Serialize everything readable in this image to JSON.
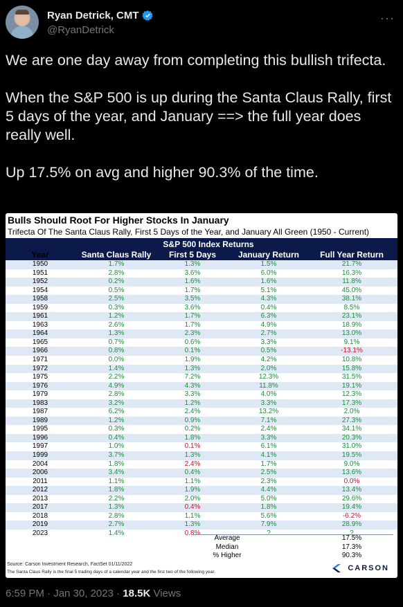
{
  "author": {
    "name": "Ryan Detrick, CMT",
    "handle": "@RyanDetrick",
    "verified_color": "#1d9bf0"
  },
  "tweet": {
    "paragraphs": [
      "We are one day away from completing this bullish trifecta.",
      "When the S&P 500 is up during the Santa Claus Rally, first 5 days of the year, and January ==> the full year does really well.",
      "Up 17.5% on avg and higher 90.3% of the time."
    ]
  },
  "table": {
    "title": "Bulls Should Root For Higher Stocks In January",
    "subtitle": "Trifecta Of The Santa Claus Rally, First 5 Days of the Year, and January All Green (1950 - Current)",
    "band_title": "S&P 500 Index Returns",
    "columns": [
      "Year",
      "Santa Claus Rally",
      "First 5 Days",
      "January Return",
      "Full Year Return"
    ],
    "rows": [
      [
        "1950",
        "1.7%",
        "1.3%",
        "1.5%",
        "21.7%"
      ],
      [
        "1951",
        "2.8%",
        "3.6%",
        "6.0%",
        "16.3%"
      ],
      [
        "1952",
        "0.2%",
        "1.6%",
        "1.6%",
        "11.8%"
      ],
      [
        "1954",
        "0.5%",
        "1.7%",
        "5.1%",
        "45.0%"
      ],
      [
        "1958",
        "2.5%",
        "3.5%",
        "4.3%",
        "38.1%"
      ],
      [
        "1959",
        "0.3%",
        "3.6%",
        "0.4%",
        "8.5%"
      ],
      [
        "1961",
        "1.2%",
        "1.7%",
        "6.3%",
        "23.1%"
      ],
      [
        "1963",
        "2.6%",
        "1.7%",
        "4.9%",
        "18.9%"
      ],
      [
        "1964",
        "1.3%",
        "2.3%",
        "2.7%",
        "13.0%"
      ],
      [
        "1965",
        "0.7%",
        "0.6%",
        "3.3%",
        "9.1%"
      ],
      [
        "1966",
        "0.8%",
        "0.1%",
        "0.5%",
        "-13.1%"
      ],
      [
        "1971",
        "0.0%",
        "1.9%",
        "4.2%",
        "10.8%"
      ],
      [
        "1972",
        "1.4%",
        "1.3%",
        "2.0%",
        "15.8%"
      ],
      [
        "1975",
        "2.2%",
        "7.2%",
        "12.3%",
        "31.5%"
      ],
      [
        "1976",
        "4.9%",
        "4.3%",
        "11.8%",
        "19.1%"
      ],
      [
        "1979",
        "2.8%",
        "3.3%",
        "4.0%",
        "12.3%"
      ],
      [
        "1983",
        "3.2%",
        "1.2%",
        "3.3%",
        "17.3%"
      ],
      [
        "1987",
        "6.2%",
        "2.4%",
        "13.2%",
        "2.0%"
      ],
      [
        "1989",
        "1.2%",
        "0.9%",
        "7.1%",
        "27.3%"
      ],
      [
        "1995",
        "0.3%",
        "0.2%",
        "2.4%",
        "34.1%"
      ],
      [
        "1996",
        "0.4%",
        "1.8%",
        "3.3%",
        "20.3%"
      ],
      [
        "1997",
        "1.0%",
        "0.1%",
        "6.1%",
        "31.0%"
      ],
      [
        "1999",
        "3.7%",
        "1.3%",
        "4.1%",
        "19.5%"
      ],
      [
        "2004",
        "1.8%",
        "2.4%",
        "1.7%",
        "9.0%"
      ],
      [
        "2006",
        "3.4%",
        "0.4%",
        "2.5%",
        "13.6%"
      ],
      [
        "2011",
        "1.1%",
        "1.1%",
        "2.3%",
        "0.0%"
      ],
      [
        "2012",
        "1.8%",
        "1.9%",
        "4.4%",
        "13.4%"
      ],
      [
        "2013",
        "2.2%",
        "2.0%",
        "5.0%",
        "29.6%"
      ],
      [
        "2017",
        "1.3%",
        "0.4%",
        "1.8%",
        "19.4%"
      ],
      [
        "2018",
        "2.8%",
        "1.1%",
        "5.6%",
        "-6.2%"
      ],
      [
        "2019",
        "2.7%",
        "1.3%",
        "7.9%",
        "28.9%"
      ],
      [
        "2023",
        "1.4%",
        "0.8%",
        "?",
        "?"
      ]
    ],
    "red_cells": [
      [
        21,
        2
      ],
      [
        23,
        2
      ],
      [
        28,
        2
      ],
      [
        31,
        2
      ],
      [
        10,
        4
      ],
      [
        25,
        4
      ],
      [
        29,
        4
      ]
    ],
    "stats": [
      {
        "label": "Average",
        "value": "17.5%"
      },
      {
        "label": "Median",
        "value": "17.3%"
      },
      {
        "label": "% Higher",
        "value": "90.3%"
      }
    ],
    "source": "Source: Carson Investment Research, FactSet 01/11/2022",
    "footnote": "The Santa Claus Rally is the final 5 trading days of a calendar year and the first two of the following year.",
    "brand": "CARSON",
    "colors": {
      "positive": "#1a8f3a",
      "negative": "#d0102a",
      "band": "#0b1a4a",
      "stripe": "#dfe8f5"
    }
  },
  "meta": {
    "time": "6:59 PM · Jan 30, 2023 · ",
    "views_count": "18.5K",
    "views_label": " Views"
  }
}
